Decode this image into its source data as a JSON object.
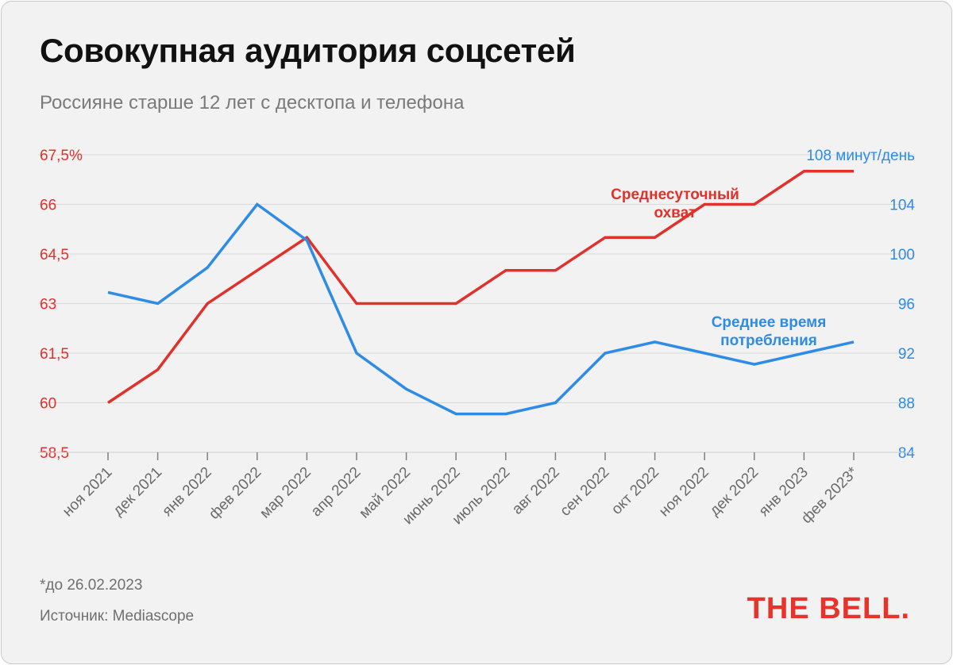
{
  "header": {
    "title": "Совокупная аудитория соцсетей",
    "subtitle": "Россияне старше 12 лет с десктопа и телефона"
  },
  "footer": {
    "footnote": "*до 26.02.2023",
    "source": "Источник: Mediascope",
    "logo": "THE BELL."
  },
  "colors": {
    "red": "#e1312b",
    "blue": "#2e8be6",
    "grid": "#d9d9d9",
    "axis": "#808080"
  },
  "chart_data": {
    "type": "line",
    "title": "Совокупная аудитория соцсетей",
    "subtitle": "Россияне старше 12 лет с десктопа и телефона",
    "categories": [
      "ноя 2021",
      "дек 2021",
      "янв 2022",
      "фев 2022",
      "мар 2022",
      "апр 2022",
      "май 2022",
      "июнь 2022",
      "июль 2022",
      "авг 2022",
      "сен 2022",
      "окт 2022",
      "ноя 2022",
      "дек 2022",
      "янв 2023",
      "фев 2023*"
    ],
    "left_axis": {
      "ticks": [
        58.5,
        60,
        61.5,
        63,
        64.5,
        66,
        67.5
      ],
      "tick_labels": [
        "58,5",
        "60",
        "61,5",
        "63",
        "64,5",
        "66",
        "67,5%"
      ],
      "ylim": [
        58.5,
        67.5
      ]
    },
    "right_axis": {
      "ticks": [
        84,
        88,
        92,
        96,
        100,
        104,
        108
      ],
      "tick_labels": [
        "84",
        "88",
        "92",
        "96",
        "100",
        "104",
        "108 минут/день"
      ],
      "ylim": [
        84,
        108
      ]
    },
    "series": [
      {
        "name": "Среднесуточный охват",
        "label_lines": [
          "Среднесуточный",
          "охват"
        ],
        "axis": "left",
        "color": "#e1312b",
        "values": [
          60.0,
          61.0,
          63.0,
          64.0,
          65.0,
          63.0,
          63.0,
          63.0,
          64.0,
          64.0,
          65.0,
          65.0,
          66.0,
          66.0,
          67.0,
          67.0
        ]
      },
      {
        "name": "Среднее время потребления",
        "label_lines": [
          "Среднее время",
          "потребления"
        ],
        "axis": "right",
        "color": "#2e8be6",
        "values": [
          96.9,
          96.0,
          98.9,
          104.0,
          101.1,
          92.0,
          89.1,
          87.1,
          87.1,
          88.0,
          92.0,
          92.9,
          92.0,
          91.1,
          92.0,
          92.9
        ]
      }
    ],
    "grid": true,
    "legend": "inline labels"
  }
}
